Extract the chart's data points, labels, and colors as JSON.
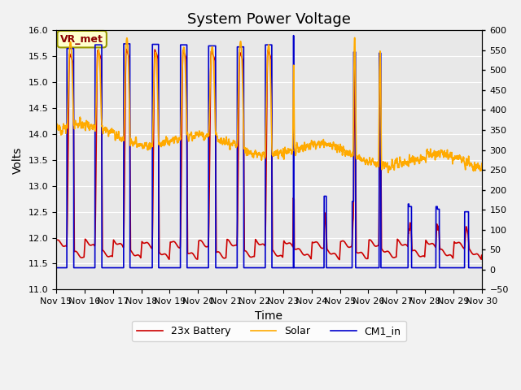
{
  "title": "System Power Voltage",
  "ylabel_left": "Volts",
  "xlabel": "Time",
  "ylim_left": [
    11.0,
    16.0
  ],
  "ylim_right": [
    -50,
    600
  ],
  "yticks_left": [
    11.0,
    11.5,
    12.0,
    12.5,
    13.0,
    13.5,
    14.0,
    14.5,
    15.0,
    15.5,
    16.0
  ],
  "yticks_right": [
    -50,
    0,
    50,
    100,
    150,
    200,
    250,
    300,
    350,
    400,
    450,
    500,
    550,
    600
  ],
  "xtick_labels": [
    "Nov 15",
    "Nov 16",
    "Nov 17",
    "Nov 18",
    "Nov 19",
    "Nov 20",
    "Nov 21",
    "Nov 22",
    "Nov 23",
    "Nov 24",
    "Nov 25",
    "Nov 26",
    "Nov 27",
    "Nov 28",
    "Nov 29",
    "Nov 30"
  ],
  "legend_labels": [
    "23x Battery",
    "Solar",
    "CM1_in"
  ],
  "legend_colors": [
    "#cc0000",
    "#ffaa00",
    "#0000cc"
  ],
  "vr_met_label": "VR_met",
  "background_color": "#e8e8e8",
  "grid_color": "#ffffff",
  "title_fontsize": 13,
  "axis_fontsize": 10,
  "tick_fontsize": 8,
  "legend_fontsize": 9,
  "linewidth": 1.2
}
